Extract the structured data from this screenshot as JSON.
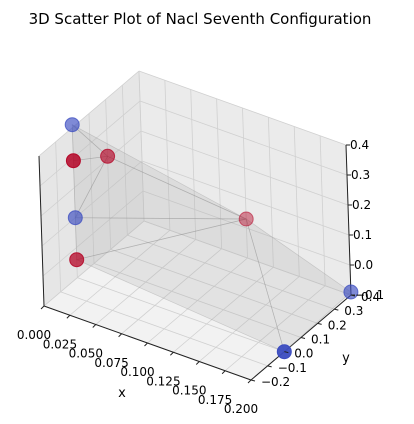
{
  "chart_data": {
    "type": "scatter",
    "title": "3D Scatter Plot of Nacl Seventh Configuration",
    "xlabel": "x",
    "ylabel": "y",
    "zlabel": "",
    "xlim": [
      0.0,
      0.2
    ],
    "ylim": [
      -0.2,
      0.4
    ],
    "zlim": [
      -0.1,
      0.4
    ],
    "x_ticks": [
      "0.000",
      "0.025",
      "0.050",
      "0.075",
      "0.100",
      "0.125",
      "0.150",
      "0.175",
      "0.200"
    ],
    "y_ticks": [
      "−0.2",
      "−0.1",
      "0.0",
      "0.1",
      "0.2",
      "0.3",
      "0.4"
    ],
    "z_ticks": [
      "−0.1",
      "0.0",
      "0.1",
      "0.2",
      "0.3",
      "0.4"
    ],
    "grid": true,
    "colors": {
      "na": "#3b4cc0",
      "cl": "#b40426",
      "surface": "#a9a9a9"
    },
    "points": [
      {
        "x": 0.0,
        "y": 0.0,
        "z": 0.41,
        "color": "#3b4cc0",
        "opacity": 0.65
      },
      {
        "x": 0.0,
        "y": 0.0,
        "z": 0.29,
        "color": "#b40426",
        "opacity": 0.85
      },
      {
        "x": 0.0,
        "y": 0.2,
        "z": 0.21,
        "color": "#b40426",
        "opacity": 0.65
      },
      {
        "x": 0.0,
        "y": 0.0,
        "z": 0.1,
        "color": "#3b4cc0",
        "opacity": 0.65
      },
      {
        "x": 0.1,
        "y": 0.4,
        "z": 0.03,
        "color": "#b40426",
        "opacity": 0.45
      },
      {
        "x": 0.0,
        "y": 0.0,
        "z": -0.04,
        "color": "#b40426",
        "opacity": 0.75
      },
      {
        "x": 0.2,
        "y": 0.4,
        "z": -0.09,
        "color": "#3b4cc0",
        "opacity": 0.65
      },
      {
        "x": 0.2,
        "y": 0.0,
        "z": -0.1,
        "color": "#3b4cc0",
        "opacity": 0.95
      }
    ]
  }
}
